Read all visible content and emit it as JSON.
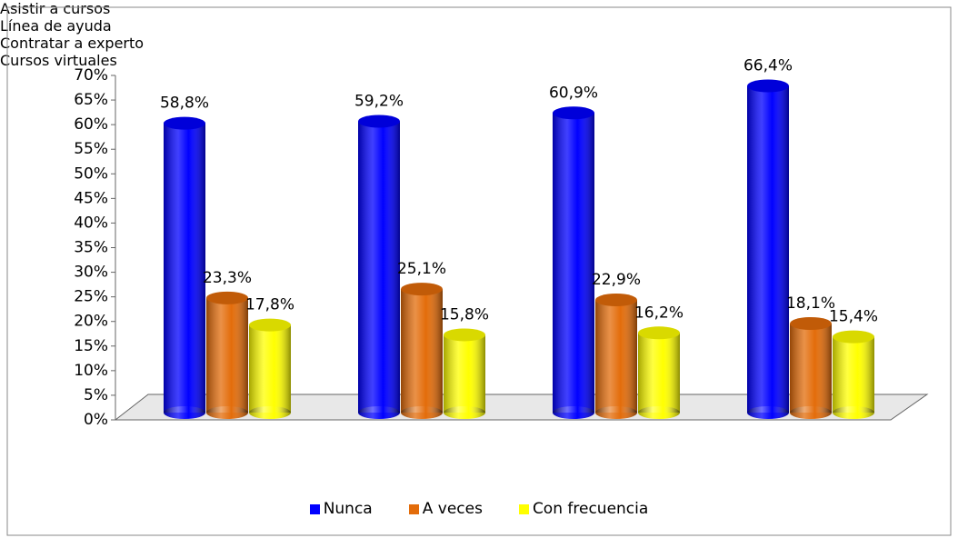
{
  "chart_data": {
    "type": "bar3d",
    "categories": [
      "Asistir a cursos",
      "Línea de ayuda",
      "Contratar a experto",
      "Cursos virtuales"
    ],
    "series": [
      {
        "name": "Nunca",
        "color": "#0000ff",
        "values": [
          58.8,
          59.2,
          60.9,
          66.4
        ],
        "value_labels": [
          "58,8%",
          "59,2%",
          "60,9%",
          "66,4%"
        ]
      },
      {
        "name": "A veces",
        "color": "#e36c0a",
        "values": [
          23.3,
          25.1,
          22.9,
          18.1
        ],
        "value_labels": [
          "23,3%",
          "25,1%",
          "22,9%",
          "18,1%"
        ]
      },
      {
        "name": "Con frecuencia",
        "color": "#ffff00",
        "values": [
          17.8,
          15.8,
          16.2,
          15.4
        ],
        "value_labels": [
          "17,8%",
          "15,8%",
          "16,2%",
          "15,4%"
        ]
      }
    ],
    "ylim": [
      0,
      70
    ],
    "yticks": [
      {
        "value": 0,
        "label": "0%"
      },
      {
        "value": 5,
        "label": "5%"
      },
      {
        "value": 10,
        "label": "10%"
      },
      {
        "value": 15,
        "label": "15%"
      },
      {
        "value": 20,
        "label": "20%"
      },
      {
        "value": 25,
        "label": "25%"
      },
      {
        "value": 30,
        "label": "30%"
      },
      {
        "value": 35,
        "label": "35%"
      },
      {
        "value": 40,
        "label": "40%"
      },
      {
        "value": 45,
        "label": "45%"
      },
      {
        "value": 50,
        "label": "50%"
      },
      {
        "value": 55,
        "label": "55%"
      },
      {
        "value": 60,
        "label": "60%"
      },
      {
        "value": 65,
        "label": "65%"
      },
      {
        "value": 70,
        "label": "70%"
      }
    ],
    "legend": "bottom"
  }
}
